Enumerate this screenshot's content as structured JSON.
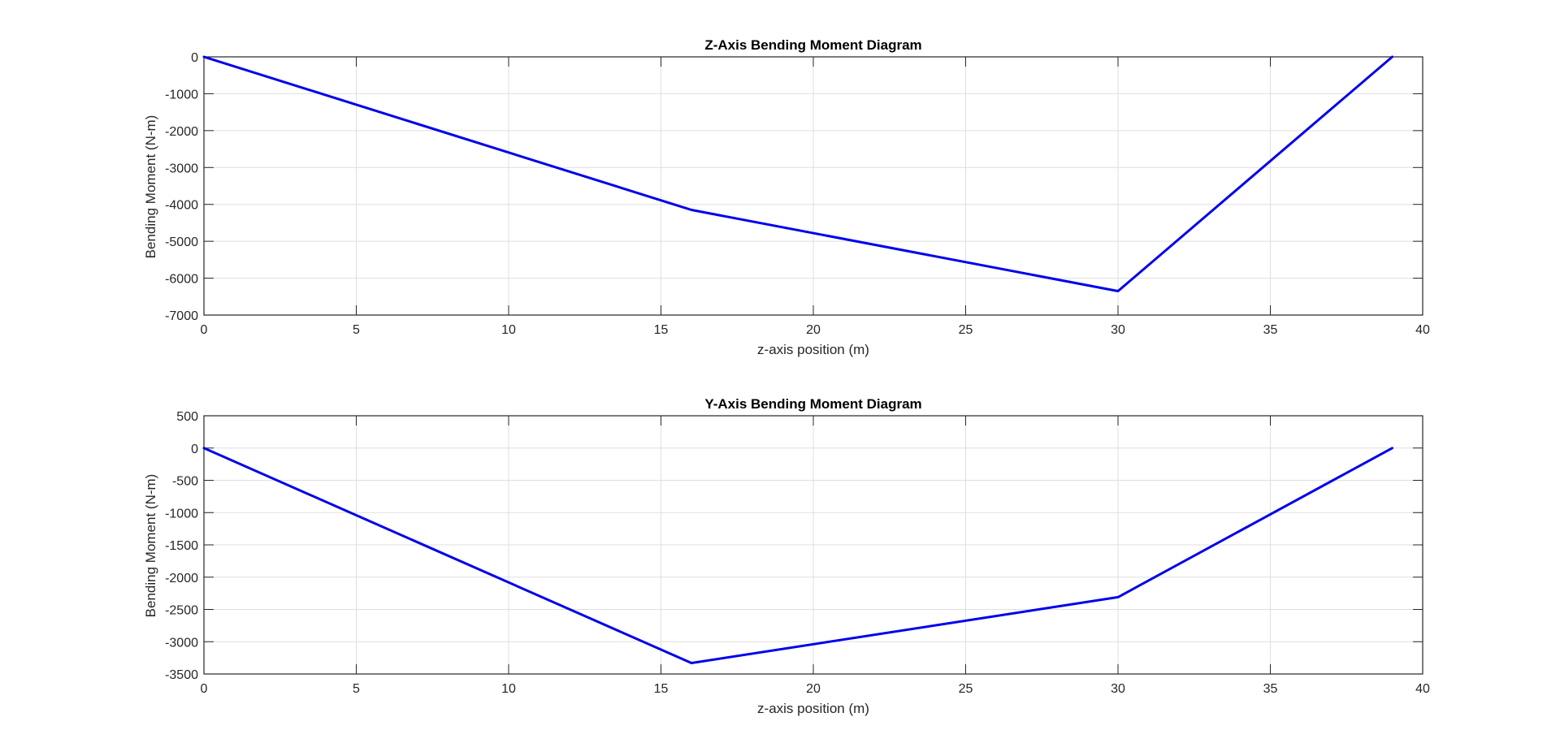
{
  "chart_data": [
    {
      "type": "line",
      "title": "Z-Axis Bending Moment Diagram",
      "xlabel": "z-axis position (m)",
      "ylabel": "Bending Moment (N-m)",
      "xlim": [
        0,
        40
      ],
      "ylim": [
        -7000,
        0
      ],
      "xticks": [
        0,
        5,
        10,
        15,
        20,
        25,
        30,
        35,
        40
      ],
      "yticks": [
        -7000,
        -6000,
        -5000,
        -4000,
        -3000,
        -2000,
        -1000,
        0
      ],
      "grid": true,
      "series": [
        {
          "x": [
            0,
            16,
            30,
            39
          ],
          "y": [
            0,
            -4150,
            -6350,
            0
          ],
          "color": "#0000ee"
        }
      ]
    },
    {
      "type": "line",
      "title": "Y-Axis Bending Moment Diagram",
      "xlabel": "z-axis position (m)",
      "ylabel": "Bending Moment (N-m)",
      "xlim": [
        0,
        40
      ],
      "ylim": [
        -3500,
        500
      ],
      "xticks": [
        0,
        5,
        10,
        15,
        20,
        25,
        30,
        35,
        40
      ],
      "yticks": [
        -3500,
        -3000,
        -2500,
        -2000,
        -1500,
        -1000,
        -500,
        0,
        500
      ],
      "grid": true,
      "series": [
        {
          "x": [
            0,
            16,
            30,
            39
          ],
          "y": [
            0,
            -3330,
            -2310,
            0
          ],
          "color": "#0000ee"
        }
      ]
    }
  ]
}
